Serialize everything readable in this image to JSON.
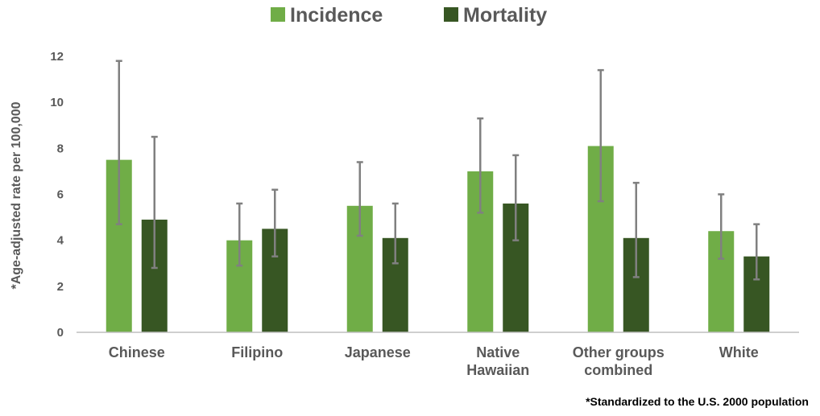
{
  "chart_data": {
    "type": "bar",
    "categories": [
      [
        "Chinese"
      ],
      [
        "Filipino"
      ],
      [
        "Japanese"
      ],
      [
        "Native",
        "Hawaiian"
      ],
      [
        "Other groups",
        "combined"
      ],
      [
        "White"
      ]
    ],
    "series": [
      {
        "name": "Incidence",
        "color": "#70ad47",
        "values": [
          7.5,
          4.0,
          5.5,
          7.0,
          8.1,
          4.4
        ],
        "error_low": [
          4.7,
          2.9,
          4.2,
          5.2,
          5.7,
          3.2
        ],
        "error_high": [
          11.8,
          5.6,
          7.4,
          9.3,
          11.4,
          6.0
        ]
      },
      {
        "name": "Mortality",
        "color": "#375623",
        "values": [
          4.9,
          4.5,
          4.1,
          5.6,
          4.1,
          3.3
        ],
        "error_low": [
          2.8,
          3.3,
          3.0,
          4.0,
          2.4,
          2.3
        ],
        "error_high": [
          8.5,
          6.2,
          5.6,
          7.7,
          6.5,
          4.7
        ]
      }
    ],
    "ylabel": "*Age-adjusted rate per 100,000",
    "ylim": [
      0,
      12
    ],
    "yticks": [
      0,
      2,
      4,
      6,
      8,
      10,
      12
    ],
    "grid": false,
    "legend": "top-center",
    "error_bar_color": "#808080"
  },
  "footnote": "*Standardized to the U.S. 2000 population"
}
